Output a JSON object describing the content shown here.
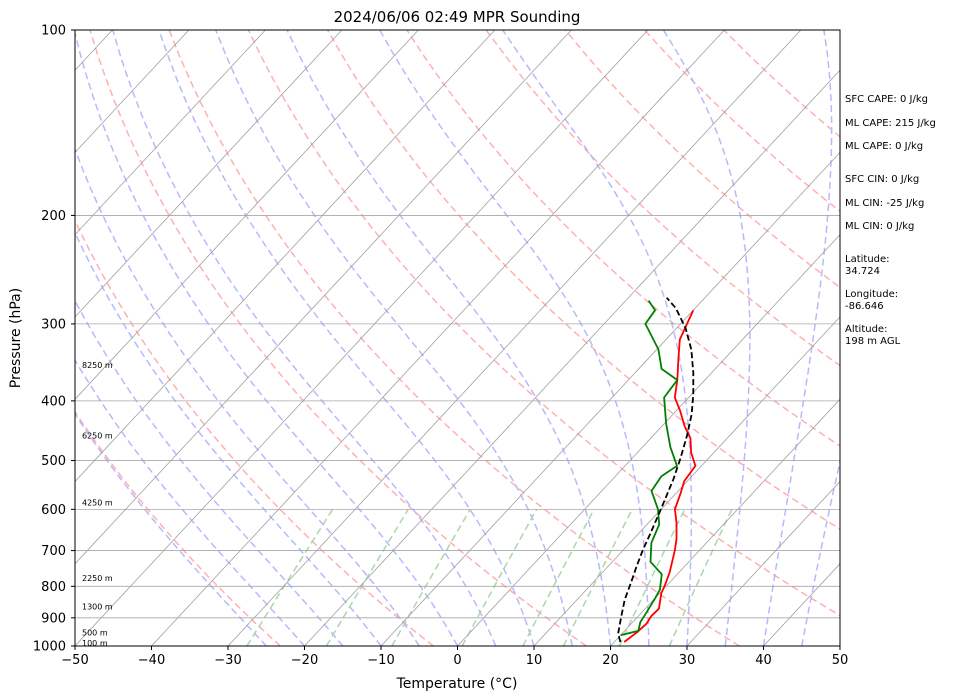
{
  "chart_data": {
    "type": "line",
    "title": "2024/06/06 02:49 MPR Sounding",
    "xlabel": "Temperature (°C)",
    "ylabel": "Pressure (hPa)",
    "xlim": [
      -50,
      50
    ],
    "ylim": [
      1000,
      100
    ],
    "y_scale": "log",
    "grid": true,
    "x_ticks": [
      -50,
      -40,
      -30,
      -20,
      -10,
      0,
      10,
      20,
      30,
      40,
      50
    ],
    "y_ticks": [
      100,
      200,
      300,
      400,
      500,
      600,
      700,
      800,
      900,
      1000
    ],
    "x_tick_labels": [
      "−50",
      "−40",
      "−30",
      "−20",
      "−10",
      "0",
      "10",
      "20",
      "30",
      "40",
      "50"
    ],
    "y_tick_labels": [
      "100",
      "200",
      "300",
      "400",
      "500",
      "600",
      "700",
      "800",
      "900",
      "1000"
    ],
    "height_labels": [
      {
        "p": 350,
        "text": "8250 m"
      },
      {
        "p": 455,
        "text": "6250 m"
      },
      {
        "p": 585,
        "text": "4250 m"
      },
      {
        "p": 776,
        "text": "2250 m"
      },
      {
        "p": 862,
        "text": "1300 m"
      },
      {
        "p": 951,
        "text": "500 m"
      },
      {
        "p": 988,
        "text": "100 m"
      }
    ],
    "stats": [
      "SFC CAPE: 0 J/kg",
      "ML CAPE: 215 J/kg",
      "ML CAPE: 0 J/kg",
      "SFC CIN: 0 J/kg",
      "ML CIN: -25 J/kg",
      "ML CIN: 0 J/kg",
      "Latitude:",
      "34.724",
      "Longitude:",
      "-86.646",
      "Altitude:",
      "198 m AGL"
    ],
    "colors": {
      "temperature": "#ff0000",
      "dewpoint": "#008000",
      "parcel": "#000000",
      "isotherm": "#a0a0a0",
      "dry_adiabat": "#ffb0b0",
      "moist_adiabat": "#b8b8ff",
      "mixing_ratio": "#a8d8a8"
    },
    "series": [
      {
        "values": [
          {
            "t": 21.3,
            "p": 985
          },
          {
            "t": 21.8,
            "p": 950
          },
          {
            "t": 22.0,
            "p": 920
          },
          {
            "t": 21.7,
            "p": 895
          },
          {
            "t": 21.8,
            "p": 870
          },
          {
            "t": 20.2,
            "p": 820
          },
          {
            "t": 19.8,
            "p": 800
          },
          {
            "t": 18.8,
            "p": 760
          },
          {
            "t": 16.8,
            "p": 700
          },
          {
            "t": 15.6,
            "p": 670
          },
          {
            "t": 13.6,
            "p": 630
          },
          {
            "t": 11.8,
            "p": 600
          },
          {
            "t": 10.6,
            "p": 565
          },
          {
            "t": 9.6,
            "p": 540
          },
          {
            "t": 9.2,
            "p": 510
          },
          {
            "t": 7.0,
            "p": 485
          },
          {
            "t": 5.2,
            "p": 460
          },
          {
            "t": 3.0,
            "p": 440
          },
          {
            "t": 0.5,
            "p": 415
          },
          {
            "t": -1.8,
            "p": 395
          },
          {
            "t": -3.6,
            "p": 370
          },
          {
            "t": -6.2,
            "p": 340
          },
          {
            "t": -8.2,
            "p": 318
          },
          {
            "t": -10.0,
            "p": 285
          }
        ]
      },
      {
        "values": [
          {
            "t": 20.0,
            "p": 960
          },
          {
            "t": 21.8,
            "p": 945
          },
          {
            "t": 21.0,
            "p": 915
          },
          {
            "t": 20.6,
            "p": 880
          },
          {
            "t": 20.0,
            "p": 835
          },
          {
            "t": 19.6,
            "p": 810
          },
          {
            "t": 18.0,
            "p": 765
          },
          {
            "t": 15.0,
            "p": 730
          },
          {
            "t": 12.8,
            "p": 680
          },
          {
            "t": 11.6,
            "p": 635
          },
          {
            "t": 9.6,
            "p": 600
          },
          {
            "t": 6.5,
            "p": 560
          },
          {
            "t": 6.0,
            "p": 530
          },
          {
            "t": 6.8,
            "p": 510
          },
          {
            "t": 3.6,
            "p": 475
          },
          {
            "t": 0.2,
            "p": 435
          },
          {
            "t": -3.2,
            "p": 395
          },
          {
            "t": -3.6,
            "p": 370
          },
          {
            "t": -7.0,
            "p": 355
          },
          {
            "t": -9.8,
            "p": 330
          },
          {
            "t": -14.6,
            "p": 300
          },
          {
            "t": -15.0,
            "p": 285
          },
          {
            "t": -17.0,
            "p": 275
          }
        ]
      },
      {
        "values": [
          {
            "t": 20.8,
            "p": 985
          },
          {
            "t": 19.5,
            "p": 955
          },
          {
            "t": 17.8,
            "p": 895
          },
          {
            "t": 16.2,
            "p": 840
          },
          {
            "t": 15.0,
            "p": 790
          },
          {
            "t": 13.8,
            "p": 745
          },
          {
            "t": 12.6,
            "p": 700
          },
          {
            "t": 11.5,
            "p": 655
          },
          {
            "t": 10.4,
            "p": 615
          },
          {
            "t": 9.2,
            "p": 575
          },
          {
            "t": 7.9,
            "p": 535
          },
          {
            "t": 6.3,
            "p": 495
          },
          {
            "t": 4.4,
            "p": 455
          },
          {
            "t": 2.4,
            "p": 420
          },
          {
            "t": 0.2,
            "p": 390
          },
          {
            "t": -2.4,
            "p": 360
          },
          {
            "t": -5.5,
            "p": 330
          },
          {
            "t": -8.8,
            "p": 305
          },
          {
            "t": -12.5,
            "p": 283
          },
          {
            "t": -15.0,
            "p": 272
          }
        ]
      }
    ]
  }
}
